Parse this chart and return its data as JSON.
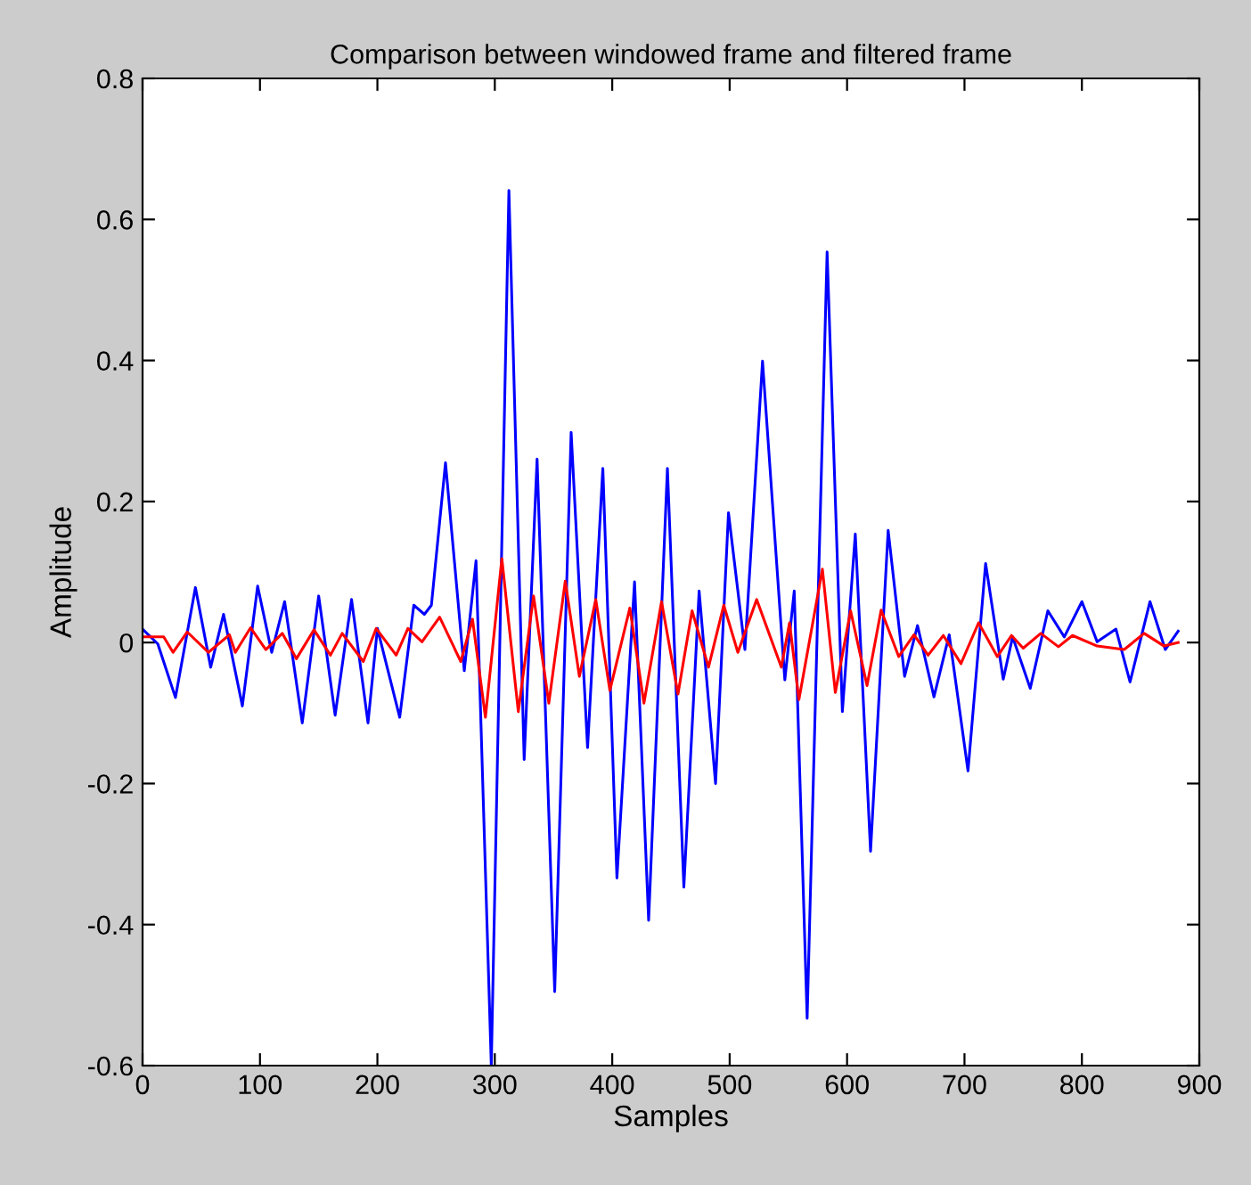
{
  "chart_data": {
    "type": "line",
    "title": "Comparison between windowed frame and filtered frame",
    "xlabel": "Samples",
    "ylabel": "Amplitude",
    "xlim": [
      0,
      900
    ],
    "xticks": [
      0,
      100,
      200,
      300,
      400,
      500,
      600,
      700,
      800,
      900
    ],
    "ylim": [
      -0.6,
      0.8
    ],
    "yticks": [
      -0.6,
      -0.4,
      -0.2,
      0,
      0.2,
      0.4,
      0.6,
      0.8
    ],
    "grid": false,
    "legend": false,
    "series": [
      {
        "color": "#0000ff",
        "x": [
          0,
          13,
          28,
          45,
          58,
          69,
          85,
          98,
          110,
          121,
          136,
          150,
          164,
          178,
          192,
          200,
          219,
          231,
          240,
          246,
          258,
          274,
          284,
          297,
          312,
          325,
          336,
          351,
          365,
          379,
          392,
          404,
          419,
          431,
          447,
          461,
          474,
          488,
          499,
          513,
          528,
          547,
          555,
          566,
          583,
          596,
          607,
          620,
          635,
          649,
          660,
          674,
          687,
          703,
          718,
          733,
          741,
          756,
          771,
          785,
          800,
          813,
          829,
          841,
          858,
          871,
          882
        ],
        "values": [
          0.019,
          -0.002,
          -0.078,
          0.078,
          -0.035,
          0.04,
          -0.09,
          0.08,
          -0.014,
          0.058,
          -0.114,
          0.066,
          -0.103,
          0.061,
          -0.114,
          0.02,
          -0.106,
          0.053,
          0.04,
          0.053,
          0.255,
          -0.04,
          0.116,
          -0.6,
          0.641,
          -0.166,
          0.26,
          -0.495,
          0.298,
          -0.149,
          0.247,
          -0.334,
          0.086,
          -0.394,
          0.247,
          -0.347,
          0.073,
          -0.2,
          0.184,
          -0.01,
          0.399,
          -0.053,
          0.073,
          -0.533,
          0.554,
          -0.098,
          0.154,
          -0.296,
          0.159,
          -0.048,
          0.024,
          -0.077,
          0.011,
          -0.182,
          0.112,
          -0.052,
          0.008,
          -0.065,
          0.045,
          0.008,
          0.058,
          0.001,
          0.019,
          -0.056,
          0.058,
          -0.01,
          0.016
        ]
      },
      {
        "color": "#ff0000",
        "x": [
          0,
          18,
          26,
          38,
          56,
          74,
          79,
          92,
          105,
          119,
          131,
          146,
          160,
          170,
          188,
          199,
          216,
          226,
          238,
          253,
          271,
          281,
          292,
          306,
          320,
          333,
          346,
          360,
          372,
          386,
          398,
          415,
          427,
          442,
          456,
          468,
          482,
          495,
          507,
          523,
          544,
          551,
          559,
          579,
          590,
          603,
          617,
          629,
          644,
          657,
          669,
          682,
          697,
          712,
          728,
          740,
          750,
          765,
          780,
          792,
          813,
          836,
          853,
          870,
          882
        ],
        "values": [
          0.008,
          0.008,
          -0.014,
          0.015,
          -0.014,
          0.011,
          -0.014,
          0.021,
          -0.01,
          0.013,
          -0.023,
          0.018,
          -0.018,
          0.013,
          -0.027,
          0.02,
          -0.018,
          0.02,
          0.001,
          0.036,
          -0.027,
          0.033,
          -0.106,
          0.119,
          -0.098,
          0.066,
          -0.086,
          0.087,
          -0.048,
          0.061,
          -0.068,
          0.049,
          -0.086,
          0.058,
          -0.073,
          0.045,
          -0.035,
          0.053,
          -0.014,
          0.061,
          -0.035,
          0.028,
          -0.081,
          0.104,
          -0.071,
          0.045,
          -0.061,
          0.046,
          -0.02,
          0.011,
          -0.018,
          0.01,
          -0.03,
          0.028,
          -0.02,
          0.01,
          -0.008,
          0.013,
          -0.006,
          0.01,
          -0.005,
          -0.01,
          0.013,
          -0.005,
          0.0
        ]
      }
    ]
  }
}
